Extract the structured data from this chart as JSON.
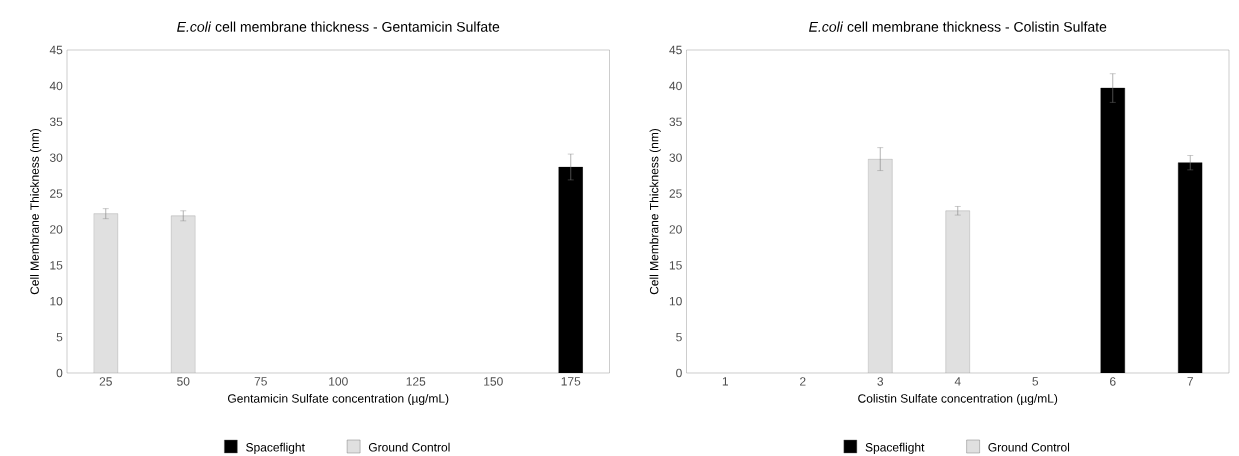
{
  "chart_data": [
    {
      "type": "bar",
      "title": "*E.coli* cell membrane thickness - Gentamicin Sulfate",
      "xlabel": "Gentamicin Sulfate concentration (µg/mL)",
      "ylabel": "Cell Membrane Thickness (nm)",
      "categories": [
        "25",
        "50",
        "75",
        "100",
        "125",
        "150",
        "175"
      ],
      "series": [
        {
          "name": "Spaceflight",
          "color": "#000000",
          "values": [
            null,
            null,
            null,
            null,
            null,
            null,
            28.7
          ],
          "errors": [
            null,
            null,
            null,
            null,
            null,
            null,
            1.8
          ]
        },
        {
          "name": "Ground Control",
          "color": "#e0e0e0",
          "values": [
            22.2,
            21.9,
            null,
            null,
            null,
            null,
            null
          ],
          "errors": [
            0.7,
            0.7,
            null,
            null,
            null,
            null,
            null
          ]
        }
      ],
      "ylim": [
        0,
        45
      ],
      "yticks": [
        0,
        5,
        10,
        15,
        20,
        25,
        30,
        35,
        40,
        45
      ],
      "legend": "bottom",
      "grid": false
    },
    {
      "type": "bar",
      "title": "*E.coli* cell membrane thickness - Colistin Sulfate",
      "xlabel": "Colistin Sulfate concentration (µg/mL)",
      "ylabel": "Cell Membrane Thickness (nm)",
      "categories": [
        "1",
        "2",
        "3",
        "4",
        "5",
        "6",
        "7"
      ],
      "series": [
        {
          "name": "Spaceflight",
          "color": "#000000",
          "values": [
            null,
            null,
            null,
            null,
            null,
            39.7,
            29.3
          ],
          "errors": [
            null,
            null,
            null,
            null,
            null,
            2.0,
            1.0
          ]
        },
        {
          "name": "Ground Control",
          "color": "#e0e0e0",
          "values": [
            null,
            null,
            29.8,
            22.6,
            null,
            null,
            null
          ],
          "errors": [
            null,
            null,
            1.6,
            0.6,
            null,
            null,
            null
          ]
        }
      ],
      "ylim": [
        0,
        45
      ],
      "yticks": [
        0,
        5,
        10,
        15,
        20,
        25,
        30,
        35,
        40,
        45
      ],
      "legend": "bottom",
      "grid": false
    }
  ]
}
